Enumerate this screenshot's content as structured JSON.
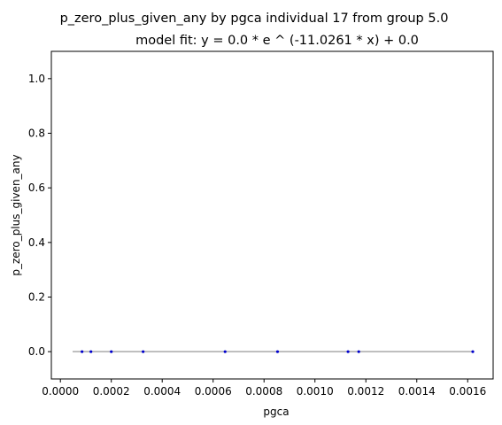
{
  "chart_data": {
    "type": "scatter",
    "title": "p_zero_plus_given_any by pgca individual 17 from group 5.0",
    "subtitle": "model fit: y = 0.0 * e ^ (-11.0261 * x) + 0.0",
    "xlabel": "pgca",
    "ylabel": "p_zero_plus_given_any",
    "xlim": [
      -3.55e-05,
      0.0017
    ],
    "ylim": [
      -0.1,
      1.1
    ],
    "xticks": [
      0.0,
      0.0002,
      0.0004,
      0.0006,
      0.0008,
      0.001,
      0.0012,
      0.0014,
      0.0016
    ],
    "xtick_labels": [
      "0.0000",
      "0.0002",
      "0.0004",
      "0.0006",
      "0.0008",
      "0.0010",
      "0.0012",
      "0.0014",
      "0.0016"
    ],
    "yticks": [
      0.0,
      0.2,
      0.4,
      0.6,
      0.8,
      1.0
    ],
    "ytick_labels": [
      "0.0",
      "0.2",
      "0.4",
      "0.6",
      "0.8",
      "1.0"
    ],
    "grid": false,
    "points": {
      "x": [
        8.5e-05,
        0.00012,
        0.0002,
        0.000325,
        0.000647,
        0.000853,
        0.00113,
        0.001172,
        0.00162
      ],
      "y": [
        0,
        0,
        0,
        0,
        0,
        0,
        0,
        0,
        0
      ],
      "color": "#0000cc"
    },
    "fit_line": {
      "x": [
        4.8e-05,
        0.00162
      ],
      "y": [
        0.0,
        0.0
      ],
      "color": "#aaaaaa"
    }
  }
}
